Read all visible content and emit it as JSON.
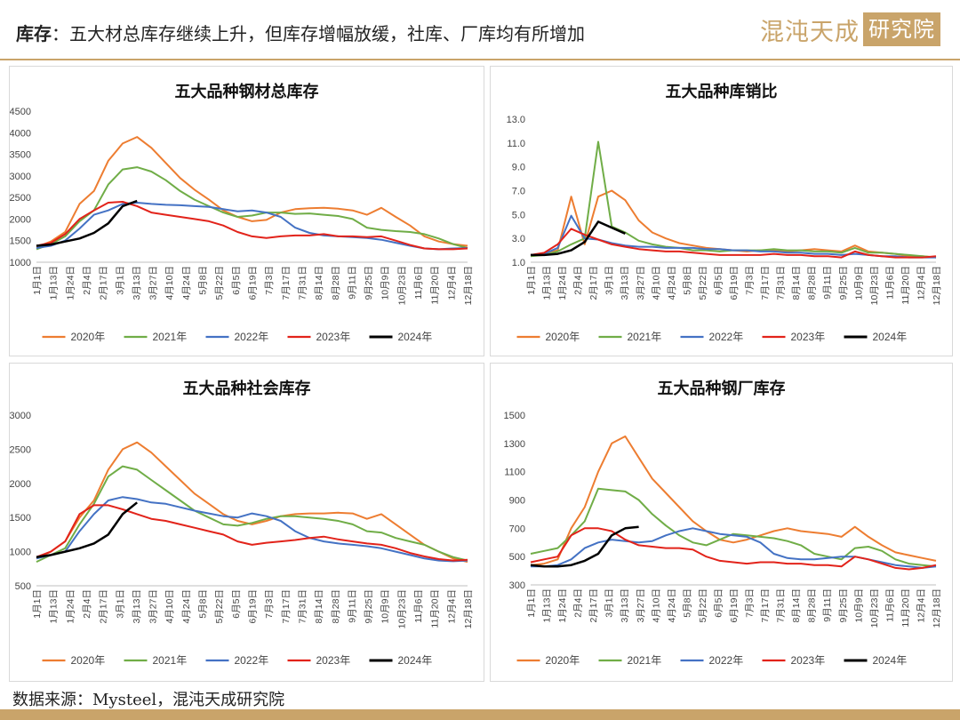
{
  "header": {
    "title_key": "库存",
    "title_rest": "：五大材总库存继续上升，但库存增幅放缓，社库、厂库均有所增加",
    "logo_main": "混沌天成",
    "logo_box": "研究院"
  },
  "footer": {
    "source": "数据来源：Mysteel，混沌天成研究院"
  },
  "colors": {
    "2020年": "#ed7d31",
    "2021年": "#70ad47",
    "2022年": "#4472c4",
    "2023年": "#e2231a",
    "2024年": "#000000"
  },
  "x_labels": [
    "1月1日",
    "1月13日",
    "1月24日",
    "2月4日",
    "2月17日",
    "3月1日",
    "3月13日",
    "3月27日",
    "4月10日",
    "4月24日",
    "5月8日",
    "5月22日",
    "6月5日",
    "6月19日",
    "7月3日",
    "7月17日",
    "7月31日",
    "8月14日",
    "8月28日",
    "9月11日",
    "9月25日",
    "10月9日",
    "10月23日",
    "11月6日",
    "11月20日",
    "12月4日",
    "12月18日"
  ],
  "chart_data": [
    {
      "type": "line",
      "title": "五大品种钢材总库存",
      "ylim": [
        1000,
        4500
      ],
      "yticks": [
        1000,
        1500,
        2000,
        2500,
        3000,
        3500,
        4000,
        4500
      ],
      "series": [
        {
          "name": "2020年",
          "values": [
            1350,
            1480,
            1700,
            2350,
            2650,
            3350,
            3750,
            3900,
            3650,
            3300,
            2950,
            2680,
            2450,
            2200,
            2050,
            1950,
            1980,
            2150,
            2230,
            2250,
            2260,
            2240,
            2200,
            2100,
            2260,
            2050,
            1850,
            1600,
            1480,
            1420,
            1380
          ]
        },
        {
          "name": "2021年",
          "values": [
            1300,
            1420,
            1600,
            1950,
            2200,
            2800,
            3150,
            3200,
            3100,
            2900,
            2650,
            2450,
            2300,
            2150,
            2050,
            2080,
            2150,
            2150,
            2120,
            2130,
            2100,
            2070,
            2000,
            1800,
            1750,
            1720,
            1700,
            1650,
            1550,
            1420,
            1330
          ]
        },
        {
          "name": "2022年",
          "values": [
            1330,
            1380,
            1500,
            1780,
            2100,
            2200,
            2350,
            2380,
            2350,
            2330,
            2320,
            2300,
            2280,
            2230,
            2180,
            2200,
            2150,
            2050,
            1800,
            1680,
            1620,
            1600,
            1580,
            1560,
            1520,
            1450,
            1380,
            1320,
            1300,
            1320,
            1330
          ]
        },
        {
          "name": "2023年",
          "values": [
            1380,
            1450,
            1650,
            2000,
            2200,
            2380,
            2400,
            2300,
            2150,
            2100,
            2050,
            2000,
            1950,
            1850,
            1700,
            1600,
            1560,
            1600,
            1620,
            1620,
            1650,
            1600,
            1600,
            1580,
            1600,
            1500,
            1400,
            1320,
            1300,
            1300,
            1320
          ]
        },
        {
          "name": "2024年",
          "values": [
            1380,
            1410,
            1480,
            1550,
            1680,
            1900,
            2300,
            2420
          ]
        }
      ]
    },
    {
      "type": "line",
      "title": "五大品种库销比",
      "ylim": [
        1.0,
        13.0
      ],
      "yticks": [
        1.0,
        3.0,
        5.0,
        7.0,
        9.0,
        11.0,
        13.0
      ],
      "series": [
        {
          "name": "2020年",
          "values": [
            1.6,
            1.7,
            2.0,
            6.5,
            2.5,
            6.5,
            7.0,
            6.2,
            4.5,
            3.5,
            3.0,
            2.6,
            2.4,
            2.2,
            2.1,
            2.0,
            1.9,
            2.0,
            2.0,
            1.9,
            2.0,
            2.1,
            2.0,
            1.9,
            2.4,
            1.9,
            1.8,
            1.7,
            1.5,
            1.5,
            1.4
          ]
        },
        {
          "name": "2021年",
          "values": [
            1.5,
            1.6,
            1.9,
            2.5,
            3.0,
            11.1,
            4.0,
            3.5,
            2.8,
            2.5,
            2.3,
            2.2,
            2.0,
            2.0,
            1.9,
            2.0,
            2.0,
            2.0,
            2.1,
            2.0,
            2.0,
            1.9,
            1.9,
            1.8,
            2.2,
            1.8,
            1.8,
            1.7,
            1.6,
            1.5,
            1.4
          ]
        },
        {
          "name": "2022年",
          "values": [
            1.6,
            1.7,
            2.2,
            4.9,
            3.0,
            2.9,
            2.6,
            2.4,
            2.3,
            2.3,
            2.2,
            2.2,
            2.2,
            2.1,
            2.1,
            2.0,
            2.0,
            1.9,
            1.9,
            1.8,
            1.8,
            1.7,
            1.7,
            1.6,
            1.7,
            1.6,
            1.5,
            1.5,
            1.4,
            1.4,
            1.4
          ]
        },
        {
          "name": "2023年",
          "values": [
            1.6,
            1.8,
            2.5,
            3.8,
            3.3,
            2.9,
            2.5,
            2.3,
            2.1,
            2.0,
            1.9,
            1.9,
            1.8,
            1.7,
            1.6,
            1.6,
            1.6,
            1.6,
            1.7,
            1.6,
            1.6,
            1.5,
            1.5,
            1.4,
            1.9,
            1.6,
            1.5,
            1.4,
            1.4,
            1.4,
            1.5
          ]
        },
        {
          "name": "2024年",
          "values": [
            1.6,
            1.6,
            1.7,
            2.0,
            2.7,
            4.4,
            3.9,
            3.4
          ]
        }
      ]
    },
    {
      "type": "line",
      "title": "五大品种社会库存",
      "ylim": [
        500,
        3000
      ],
      "yticks": [
        500,
        1000,
        1500,
        2000,
        2500,
        3000
      ],
      "series": [
        {
          "name": "2020年",
          "values": [
            900,
            1000,
            1150,
            1500,
            1750,
            2200,
            2500,
            2600,
            2450,
            2250,
            2050,
            1850,
            1700,
            1550,
            1450,
            1400,
            1450,
            1520,
            1550,
            1560,
            1560,
            1570,
            1560,
            1480,
            1550,
            1400,
            1250,
            1100,
            1000,
            900,
            850
          ]
        },
        {
          "name": "2021年",
          "values": [
            850,
            950,
            1050,
            1400,
            1700,
            2100,
            2250,
            2200,
            2050,
            1900,
            1750,
            1600,
            1500,
            1400,
            1380,
            1420,
            1480,
            1520,
            1520,
            1500,
            1480,
            1450,
            1400,
            1300,
            1280,
            1200,
            1150,
            1100,
            1000,
            920,
            870
          ]
        },
        {
          "name": "2022年",
          "values": [
            900,
            950,
            1000,
            1300,
            1550,
            1750,
            1800,
            1770,
            1720,
            1700,
            1650,
            1600,
            1560,
            1520,
            1500,
            1560,
            1520,
            1450,
            1300,
            1200,
            1150,
            1120,
            1100,
            1080,
            1050,
            1000,
            950,
            900,
            870,
            860,
            870
          ]
        },
        {
          "name": "2023年",
          "values": [
            920,
            1000,
            1150,
            1550,
            1680,
            1680,
            1620,
            1550,
            1480,
            1450,
            1400,
            1350,
            1300,
            1250,
            1150,
            1100,
            1130,
            1150,
            1170,
            1200,
            1220,
            1180,
            1150,
            1120,
            1100,
            1050,
            980,
            930,
            890,
            870,
            880
          ]
        },
        {
          "name": "2024年",
          "values": [
            920,
            950,
            1000,
            1050,
            1120,
            1250,
            1550,
            1720
          ]
        }
      ]
    },
    {
      "type": "line",
      "title": "五大品种钢厂库存",
      "ylim": [
        300,
        1500
      ],
      "yticks": [
        300,
        500,
        700,
        900,
        1100,
        1300,
        1500
      ],
      "series": [
        {
          "name": "2020年",
          "values": [
            440,
            450,
            480,
            700,
            850,
            1100,
            1300,
            1350,
            1200,
            1050,
            950,
            850,
            750,
            680,
            620,
            600,
            620,
            650,
            680,
            700,
            680,
            670,
            660,
            640,
            710,
            640,
            580,
            530,
            510,
            490,
            470
          ]
        },
        {
          "name": "2021年",
          "values": [
            520,
            540,
            560,
            650,
            750,
            980,
            970,
            960,
            900,
            800,
            720,
            650,
            600,
            580,
            620,
            660,
            650,
            640,
            630,
            610,
            580,
            520,
            500,
            480,
            560,
            570,
            540,
            480,
            450,
            440,
            430
          ]
        },
        {
          "name": "2022年",
          "values": [
            430,
            430,
            440,
            480,
            560,
            600,
            620,
            610,
            600,
            610,
            650,
            680,
            700,
            680,
            660,
            650,
            640,
            600,
            520,
            490,
            480,
            480,
            490,
            500,
            500,
            480,
            460,
            440,
            430,
            420,
            430
          ]
        },
        {
          "name": "2023年",
          "values": [
            460,
            480,
            500,
            650,
            700,
            700,
            680,
            620,
            580,
            570,
            560,
            560,
            550,
            500,
            470,
            460,
            450,
            460,
            460,
            450,
            450,
            440,
            440,
            430,
            500,
            480,
            450,
            420,
            410,
            420,
            440
          ]
        },
        {
          "name": "2024年",
          "values": [
            440,
            430,
            430,
            440,
            470,
            520,
            650,
            700,
            710
          ]
        }
      ]
    }
  ]
}
